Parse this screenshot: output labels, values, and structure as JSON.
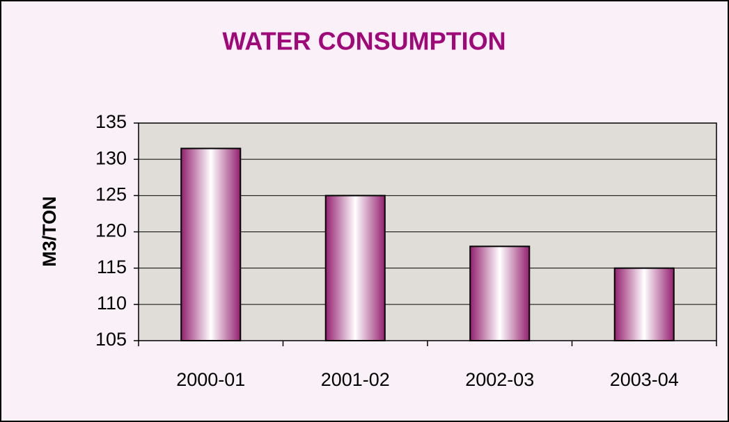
{
  "chart_data": {
    "type": "bar",
    "title": "WATER CONSUMPTION",
    "y_label": "M3/TON",
    "categories": [
      "2000-01",
      "2001-02",
      "2002-03",
      "2003-04"
    ],
    "values": [
      131.5,
      125,
      118,
      115
    ],
    "color": "#93206f",
    "ylim": [
      105,
      135
    ],
    "yticks": [
      105,
      110,
      115,
      120,
      125,
      130,
      135
    ],
    "grid": true
  }
}
